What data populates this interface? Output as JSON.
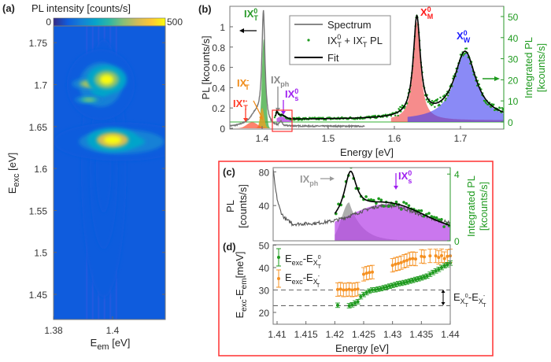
{
  "chart_data": [
    {
      "panel": "(a)",
      "type": "heatmap",
      "colorbar": {
        "title": "PL intensity [counts/s]",
        "min_label": "0",
        "max_label": "500",
        "range": [
          0,
          500
        ],
        "colors": [
          "#352a87",
          "#0f5cdd",
          "#1481d6",
          "#06a4ca",
          "#2eb7a4",
          "#87bf77",
          "#d1bb59",
          "#fec832",
          "#f9fb0e"
        ]
      },
      "xlabel": {
        "main": "E",
        "sub": "em",
        "unit": " [eV]"
      },
      "ylabel": {
        "main": "E",
        "sub": "exc",
        "unit": " [eV]"
      },
      "xlim": [
        1.38,
        1.418
      ],
      "ylim": [
        1.42,
        1.77
      ],
      "xticks": [
        "1.38",
        "1.4"
      ],
      "yticks": [
        "1.45",
        "1.5",
        "1.55",
        "1.6",
        "1.65",
        "1.7",
        "1.75"
      ],
      "background_level": 40,
      "blobs": [
        {
          "x": 1.4,
          "y": 1.634,
          "sx": 0.0045,
          "sy": 0.0075,
          "value": 500
        },
        {
          "x": 1.398,
          "y": 1.706,
          "sx": 0.0035,
          "sy": 0.009,
          "value": 470
        },
        {
          "x": 1.393,
          "y": 1.701,
          "sx": 0.0035,
          "sy": 0.004,
          "value": 420
        },
        {
          "x": 1.392,
          "y": 1.682,
          "sx": 0.0025,
          "sy": 0.0025,
          "value": 330
        },
        {
          "x": 1.396,
          "y": 1.7,
          "sx": 0.006,
          "sy": 0.022,
          "value": 200
        },
        {
          "x": 1.403,
          "y": 1.632,
          "sx": 0.012,
          "sy": 0.012,
          "value": 180
        },
        {
          "x": 1.397,
          "y": 1.6,
          "sx": 0.004,
          "sy": 0.08,
          "value": 90
        }
      ]
    },
    {
      "panel": "(b)",
      "type": "line",
      "xlabel": "Energy [eV]",
      "ylabel_left": "PL [kcounts/s]",
      "ylabel_right": "Integrated PL",
      "ylabel_right_unit": "[kcounts/s]",
      "xlim": [
        1.351,
        1.765
      ],
      "ylim_left": [
        0,
        1.15
      ],
      "ylim_right": [
        0,
        52
      ],
      "xticks": [
        "1.4",
        "1.5",
        "1.6",
        "1.7"
      ],
      "yticks_left": [
        "0",
        "0.2",
        "0.4",
        "0.6",
        "0.8",
        "1"
      ],
      "yticks_right": [
        "0",
        "10",
        "20",
        "30",
        "40",
        "50"
      ],
      "legend": {
        "position": "top-center",
        "entries": [
          {
            "label": "Spectrum"
          },
          {
            "main": "IX",
            "sup1": "0",
            "sub1": "T",
            "mid": " + IX",
            "sup2": "-",
            "sub2": "T",
            "tail": " PL"
          },
          {
            "label": "Fit"
          }
        ]
      },
      "spectrum": {
        "range": [
          1.351,
          1.555
        ],
        "baseline": 0.02,
        "peaks": [
          {
            "shape": "lorentz",
            "center": 1.402,
            "width": 0.0028,
            "amp": 1.1
          },
          {
            "shape": "gauss",
            "center": 1.392,
            "width": 0.007,
            "amp": 0.08
          },
          {
            "shape": "gauss",
            "center": 1.383,
            "width": 0.012,
            "amp": 0.04
          },
          {
            "shape": "gauss",
            "center": 1.4285,
            "width": 0.0018,
            "amp": 0.04
          }
        ]
      },
      "components_left": [
        {
          "name": "IX0_T",
          "color": "#3aa83a",
          "shape": "gauss",
          "center": 1.4025,
          "width": 0.0028,
          "amp": 0.88
        },
        {
          "name": "IX-_T",
          "color": "#f0a020",
          "shape": "gauss",
          "center": 1.4,
          "width": 0.003,
          "amp": 0.2
        },
        {
          "name": "IX'-_T",
          "color": "#ff5a3c",
          "shape": "gauss",
          "center": 1.385,
          "width": 0.008,
          "amp": 0.06
        }
      ],
      "fit_right": {
        "range": [
          1.42,
          1.765
        ],
        "background": 1.2,
        "peaks": [
          {
            "name": "IX_ph",
            "shape": "lorentz",
            "center": 1.4225,
            "width": 0.0015,
            "amp": 3
          },
          {
            "name": "IX0_s",
            "shape": "gauss",
            "center": 1.429,
            "width": 0.006,
            "amp": 1.8
          },
          {
            "name": "X0_M",
            "color": "#f04040",
            "shape": "lorentz",
            "center": 1.634,
            "width": 0.0065,
            "amp": 47,
            "fill_from": 1.595
          },
          {
            "name": "X0_W",
            "color": "#3c3cf0",
            "shape": "lorentz",
            "center": 1.707,
            "width": 0.02,
            "amp": 32,
            "fill_from": 1.62
          }
        ]
      },
      "scatter_noise": 1.2,
      "annotations": {
        "ix0t": {
          "main": "IX",
          "sup": "0",
          "sub": "T",
          "color": "#2a9a2a"
        },
        "ixmt": {
          "main": "IX",
          "sup": "-",
          "sub": "T",
          "color": "#f08c1a"
        },
        "ixpmt": {
          "main": "IX'",
          "sup": "-",
          "sub": "T",
          "color": "#ff3c28"
        },
        "ixph": {
          "main": "IX",
          "sub": "ph",
          "color": "#888888"
        },
        "ix0s": {
          "main": "IX",
          "sup": "0",
          "sub": "s",
          "color": "#a020f0"
        },
        "x0m": {
          "main": "X",
          "sup": "0",
          "sub": "M",
          "color": "#ff1c1c"
        },
        "x0w": {
          "main": "X",
          "sup": "0",
          "sub": "W",
          "color": "#2020ff"
        }
      }
    },
    {
      "panel": "(c)",
      "type": "line",
      "ylabel_left": "PL",
      "ylabel_left_unit": "[counts/s]",
      "ylabel_right": "Integrated PL",
      "ylabel_right_unit": "[kcounts/s]",
      "xlim": [
        1.4093,
        1.44
      ],
      "ylim_left": [
        0,
        82
      ],
      "ylim_right": [
        0,
        4.1
      ],
      "yticks_left": [
        "40",
        "80"
      ],
      "yticks_right": [
        "0",
        "4"
      ],
      "spectrum": {
        "start_value": 85,
        "decay_end": 1.4125,
        "baseline": 18,
        "peak": {
          "center": 1.429,
          "width": 0.005,
          "amp": 22
        }
      },
      "components_right": [
        {
          "name": "IX_ph",
          "color": "#a0a0a0",
          "center": 1.4225,
          "width": 0.0013,
          "amp": 2.3
        },
        {
          "name": "IX0_s",
          "color": "#b84ae8",
          "center": 1.429,
          "width": 0.0065,
          "amp": 1.7,
          "offset": 0.5
        }
      ],
      "fit_ix_ph": {
        "center": 1.4227,
        "width": 0.0013,
        "amp": 2.6
      },
      "scatter_noise": 0.25,
      "annotations": {
        "ixph": {
          "main": "IX",
          "sub": "ph"
        },
        "ix0s": {
          "main": "IX",
          "sup": "0",
          "sub": "s"
        }
      }
    },
    {
      "panel": "(d)",
      "type": "scatter",
      "xlabel": "Energy [eV]",
      "ylabel": {
        "a": "E",
        "a_sub": "exc",
        "b": "-E",
        "b_sub": "em",
        "unit": "[meV]"
      },
      "xlim": [
        1.4093,
        1.44
      ],
      "ylim": [
        15,
        50
      ],
      "xticks": [
        "1.41",
        "1.415",
        "1.42",
        "1.425",
        "1.43",
        "1.435",
        "1.44"
      ],
      "yticks": [
        "20",
        "30",
        "40",
        "50"
      ],
      "hlines": [
        30,
        23
      ],
      "series": [
        {
          "name": "Eexc-EX0T",
          "color": "#1e9a1e",
          "err": 1.0,
          "x": [
            1.4205,
            1.4225,
            1.423,
            1.4235,
            1.424,
            1.4245,
            1.425,
            1.4255,
            1.426,
            1.4265,
            1.427,
            1.4275,
            1.428,
            1.4285,
            1.429,
            1.4295,
            1.43,
            1.4305,
            1.431,
            1.4315,
            1.432,
            1.4325,
            1.433,
            1.4335,
            1.434,
            1.4345,
            1.435,
            1.4355,
            1.436,
            1.4365,
            1.437,
            1.4375,
            1.438,
            1.4385,
            1.439,
            1.4395,
            1.44
          ],
          "y": [
            23.2,
            23.0,
            23.4,
            24.2,
            24.8,
            27.0,
            28.0,
            28.8,
            29.5,
            30.0,
            30.1,
            30.4,
            30.6,
            31.0,
            31.3,
            31.7,
            32.0,
            32.4,
            32.8,
            33.0,
            33.3,
            33.6,
            34.0,
            34.3,
            34.7,
            35.0,
            35.4,
            35.8,
            36.2,
            37.0,
            37.8,
            38.5,
            39.2,
            40.0,
            40.8,
            41.3,
            42.0
          ]
        },
        {
          "name": "Eexc-EX-T",
          "color": "#f59020",
          "err": 3.0,
          "x": [
            1.4205,
            1.421,
            1.4215,
            1.422,
            1.4225,
            1.423,
            1.4235,
            1.424,
            1.425,
            1.4255,
            1.426,
            1.4265,
            1.43,
            1.4305,
            1.431,
            1.4315,
            1.432,
            1.4325,
            1.433,
            1.4335,
            1.434,
            1.435,
            1.4355,
            1.4365,
            1.4375,
            1.438,
            1.4385,
            1.439,
            1.4395,
            1.44
          ],
          "y": [
            30.2,
            30.4,
            30.0,
            30.1,
            30.3,
            30.0,
            30.2,
            30.4,
            37.0,
            37.5,
            37.8,
            38.0,
            41.0,
            41.5,
            41.8,
            42.2,
            42.8,
            43.2,
            43.8,
            44.0,
            43.8,
            45.0,
            44.8,
            45.2,
            45.2,
            44.5,
            45.3,
            44.0,
            45.0,
            45.2
          ]
        }
      ],
      "legend": {
        "position": "top-left",
        "entries": [
          {
            "a": "E",
            "a_sub": "exc",
            "b": "-E",
            "b_sub": "X",
            "sup": "0",
            "subsub": "T"
          },
          {
            "a": "E",
            "a_sub": "exc",
            "b": "-E",
            "b_sub": "X",
            "sup": "-",
            "subsub": "T"
          }
        ]
      },
      "gap_label": {
        "a": "E",
        "a_sub": "X",
        "a_sup": "0",
        "a_subsub": "T",
        "b": "-E",
        "b_sub": "X",
        "b_sup": "-",
        "b_subsub": "T"
      }
    }
  ],
  "panel_labels": {
    "a": "(a)",
    "b": "(b)",
    "c": "(c)",
    "d": "(d)"
  },
  "highlight_color": "#ff3030"
}
